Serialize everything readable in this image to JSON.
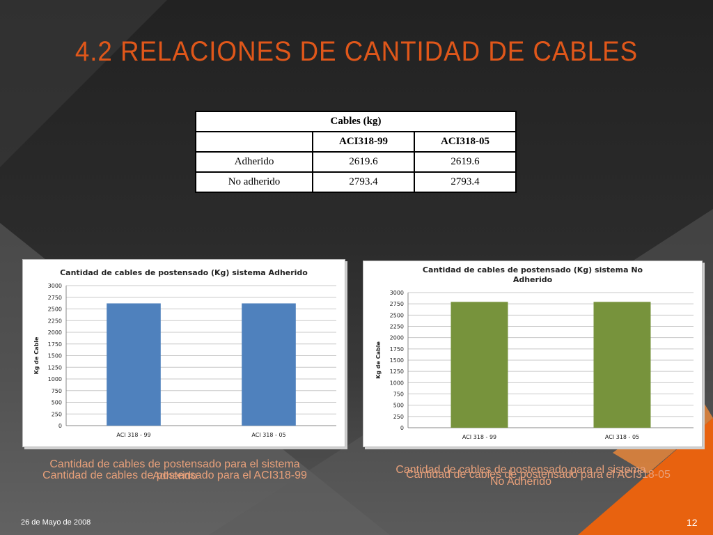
{
  "slide": {
    "title": "4.2 RELACIONES DE CANTIDAD DE CABLES",
    "date": "26 de Mayo de 2008",
    "page_number": "12"
  },
  "table": {
    "title": "Cables (kg)",
    "headers": [
      "",
      "ACI318-99",
      "ACI318-05"
    ],
    "rows": [
      [
        "Adherido",
        "2619.6",
        "2619.6"
      ],
      [
        "No adherido",
        "2793.4",
        "2793.4"
      ]
    ]
  },
  "captions": {
    "left_1": "Cantidad de cables de postensado para el sistema",
    "left_1b": "Adherido",
    "left_2": "Cantidad de cables de postensado para el ACI318-99",
    "right_1": "Cantidad de cables de postensado para el sistema",
    "right_1b": "No Adherido",
    "right_2": "Cantidad de cables de postensado para el ACI318-05"
  },
  "colors": {
    "accent": "#e0571a",
    "bar_blue": "#4f81bd",
    "bar_green": "#77933c"
  },
  "chart_data": [
    {
      "type": "bar",
      "title": "Cantidad de cables de postensado (Kg) sistema Adherido",
      "categories": [
        "ACI 318 - 99",
        "ACI 318 - 05"
      ],
      "values": [
        2619.6,
        2619.6
      ],
      "ylabel": "Kg de Cable",
      "ylim": [
        0,
        3000
      ],
      "yticks": [
        0,
        250,
        500,
        750,
        1000,
        1250,
        1500,
        1750,
        2000,
        2250,
        2500,
        2750,
        3000
      ],
      "color": "#4f81bd",
      "grid": true
    },
    {
      "type": "bar",
      "title": "Cantidad de cables de postensado (Kg) sistema No Adherido",
      "categories": [
        "ACI 318 - 99",
        "ACI 318 - 05"
      ],
      "values": [
        2793.4,
        2793.4
      ],
      "ylabel": "Kg de Cable",
      "ylim": [
        0,
        3000
      ],
      "yticks": [
        0,
        250,
        500,
        750,
        1000,
        1250,
        1500,
        1750,
        2000,
        2250,
        2500,
        2750,
        3000
      ],
      "color": "#77933c",
      "grid": true
    }
  ]
}
